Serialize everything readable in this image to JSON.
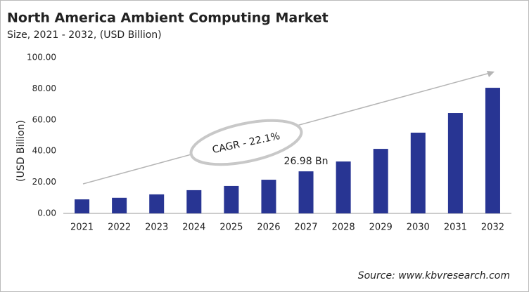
{
  "chart_data": {
    "type": "bar",
    "title": "North America Ambient Computing Market",
    "subtitle": "Size, 2021 - 2032, (USD Billion)",
    "y_label": "(USD Billion)",
    "categories": [
      "2021",
      "2022",
      "2023",
      "2024",
      "2025",
      "2026",
      "2027",
      "2028",
      "2029",
      "2030",
      "2031",
      "2032"
    ],
    "values": [
      9.0,
      10.0,
      12.2,
      14.9,
      17.6,
      21.6,
      26.98,
      33.3,
      41.4,
      51.8,
      64.4,
      80.6
    ],
    "value_labels": [
      null,
      null,
      null,
      null,
      null,
      null,
      "26.98 Bn",
      null,
      null,
      null,
      null,
      null
    ],
    "color": "#283593",
    "ylim": [
      0,
      100
    ],
    "yticks": [
      {
        "value": 0,
        "label": "0.00"
      },
      {
        "value": 20,
        "label": "20.00"
      },
      {
        "value": 40,
        "label": "40.00"
      },
      {
        "value": 60,
        "label": "60.00"
      },
      {
        "value": 80,
        "label": "80.00"
      },
      {
        "value": 100,
        "label": "100.00"
      }
    ],
    "grid": false,
    "annotation": "CAGR - 22.1%",
    "source": "Source: www.kbvresearch.com"
  }
}
